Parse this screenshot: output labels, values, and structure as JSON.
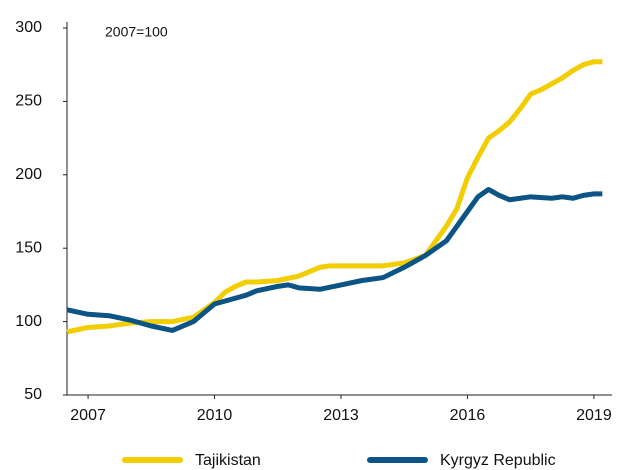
{
  "chart_data": {
    "type": "line",
    "annotation": "2007=100",
    "xlim": [
      2006.5,
      2019.5
    ],
    "xticks": [
      2007,
      2010,
      2013,
      2016,
      2019
    ],
    "ylim": [
      50,
      300
    ],
    "yticks": [
      50,
      100,
      150,
      200,
      250,
      300
    ],
    "legend": "bottom",
    "series": [
      {
        "name": "Tajikistan",
        "color": "#f2cd00",
        "x": [
          2006.5,
          2007,
          2007.5,
          2008,
          2008.5,
          2009,
          2009.5,
          2010,
          2010.25,
          2010.5,
          2010.75,
          2011,
          2011.5,
          2012,
          2012.5,
          2012.75,
          2013,
          2013.5,
          2014,
          2014.5,
          2015,
          2015.25,
          2015.5,
          2015.75,
          2016,
          2016.25,
          2016.5,
          2016.75,
          2017,
          2017.25,
          2017.5,
          2017.75,
          2018,
          2018.25,
          2018.5,
          2018.75,
          2019,
          2019.2
        ],
        "values": [
          93,
          96,
          97,
          99,
          100,
          100,
          103,
          113,
          120,
          124,
          127,
          127,
          128,
          131,
          137,
          138,
          138,
          138,
          138,
          140,
          145,
          155,
          165,
          177,
          198,
          212,
          225,
          230,
          236,
          245,
          255,
          258,
          262,
          266,
          271,
          275,
          277,
          277
        ]
      },
      {
        "name": "Kyrgyz Republic",
        "color": "#0b5485",
        "x": [
          2006.5,
          2007,
          2007.5,
          2008,
          2008.5,
          2009,
          2009.5,
          2010,
          2010.5,
          2010.75,
          2011,
          2011.5,
          2011.75,
          2012,
          2012.5,
          2013,
          2013.5,
          2014,
          2014.5,
          2015,
          2015.5,
          2016,
          2016.25,
          2016.5,
          2016.75,
          2017,
          2017.5,
          2018,
          2018.25,
          2018.5,
          2018.75,
          2019,
          2019.2
        ],
        "values": [
          108,
          105,
          104,
          101,
          97,
          94,
          100,
          112,
          116,
          118,
          121,
          124,
          125,
          123,
          122,
          125,
          128,
          130,
          137,
          145,
          155,
          175,
          185,
          190,
          186,
          183,
          185,
          184,
          185,
          184,
          186,
          187,
          187
        ]
      }
    ]
  }
}
